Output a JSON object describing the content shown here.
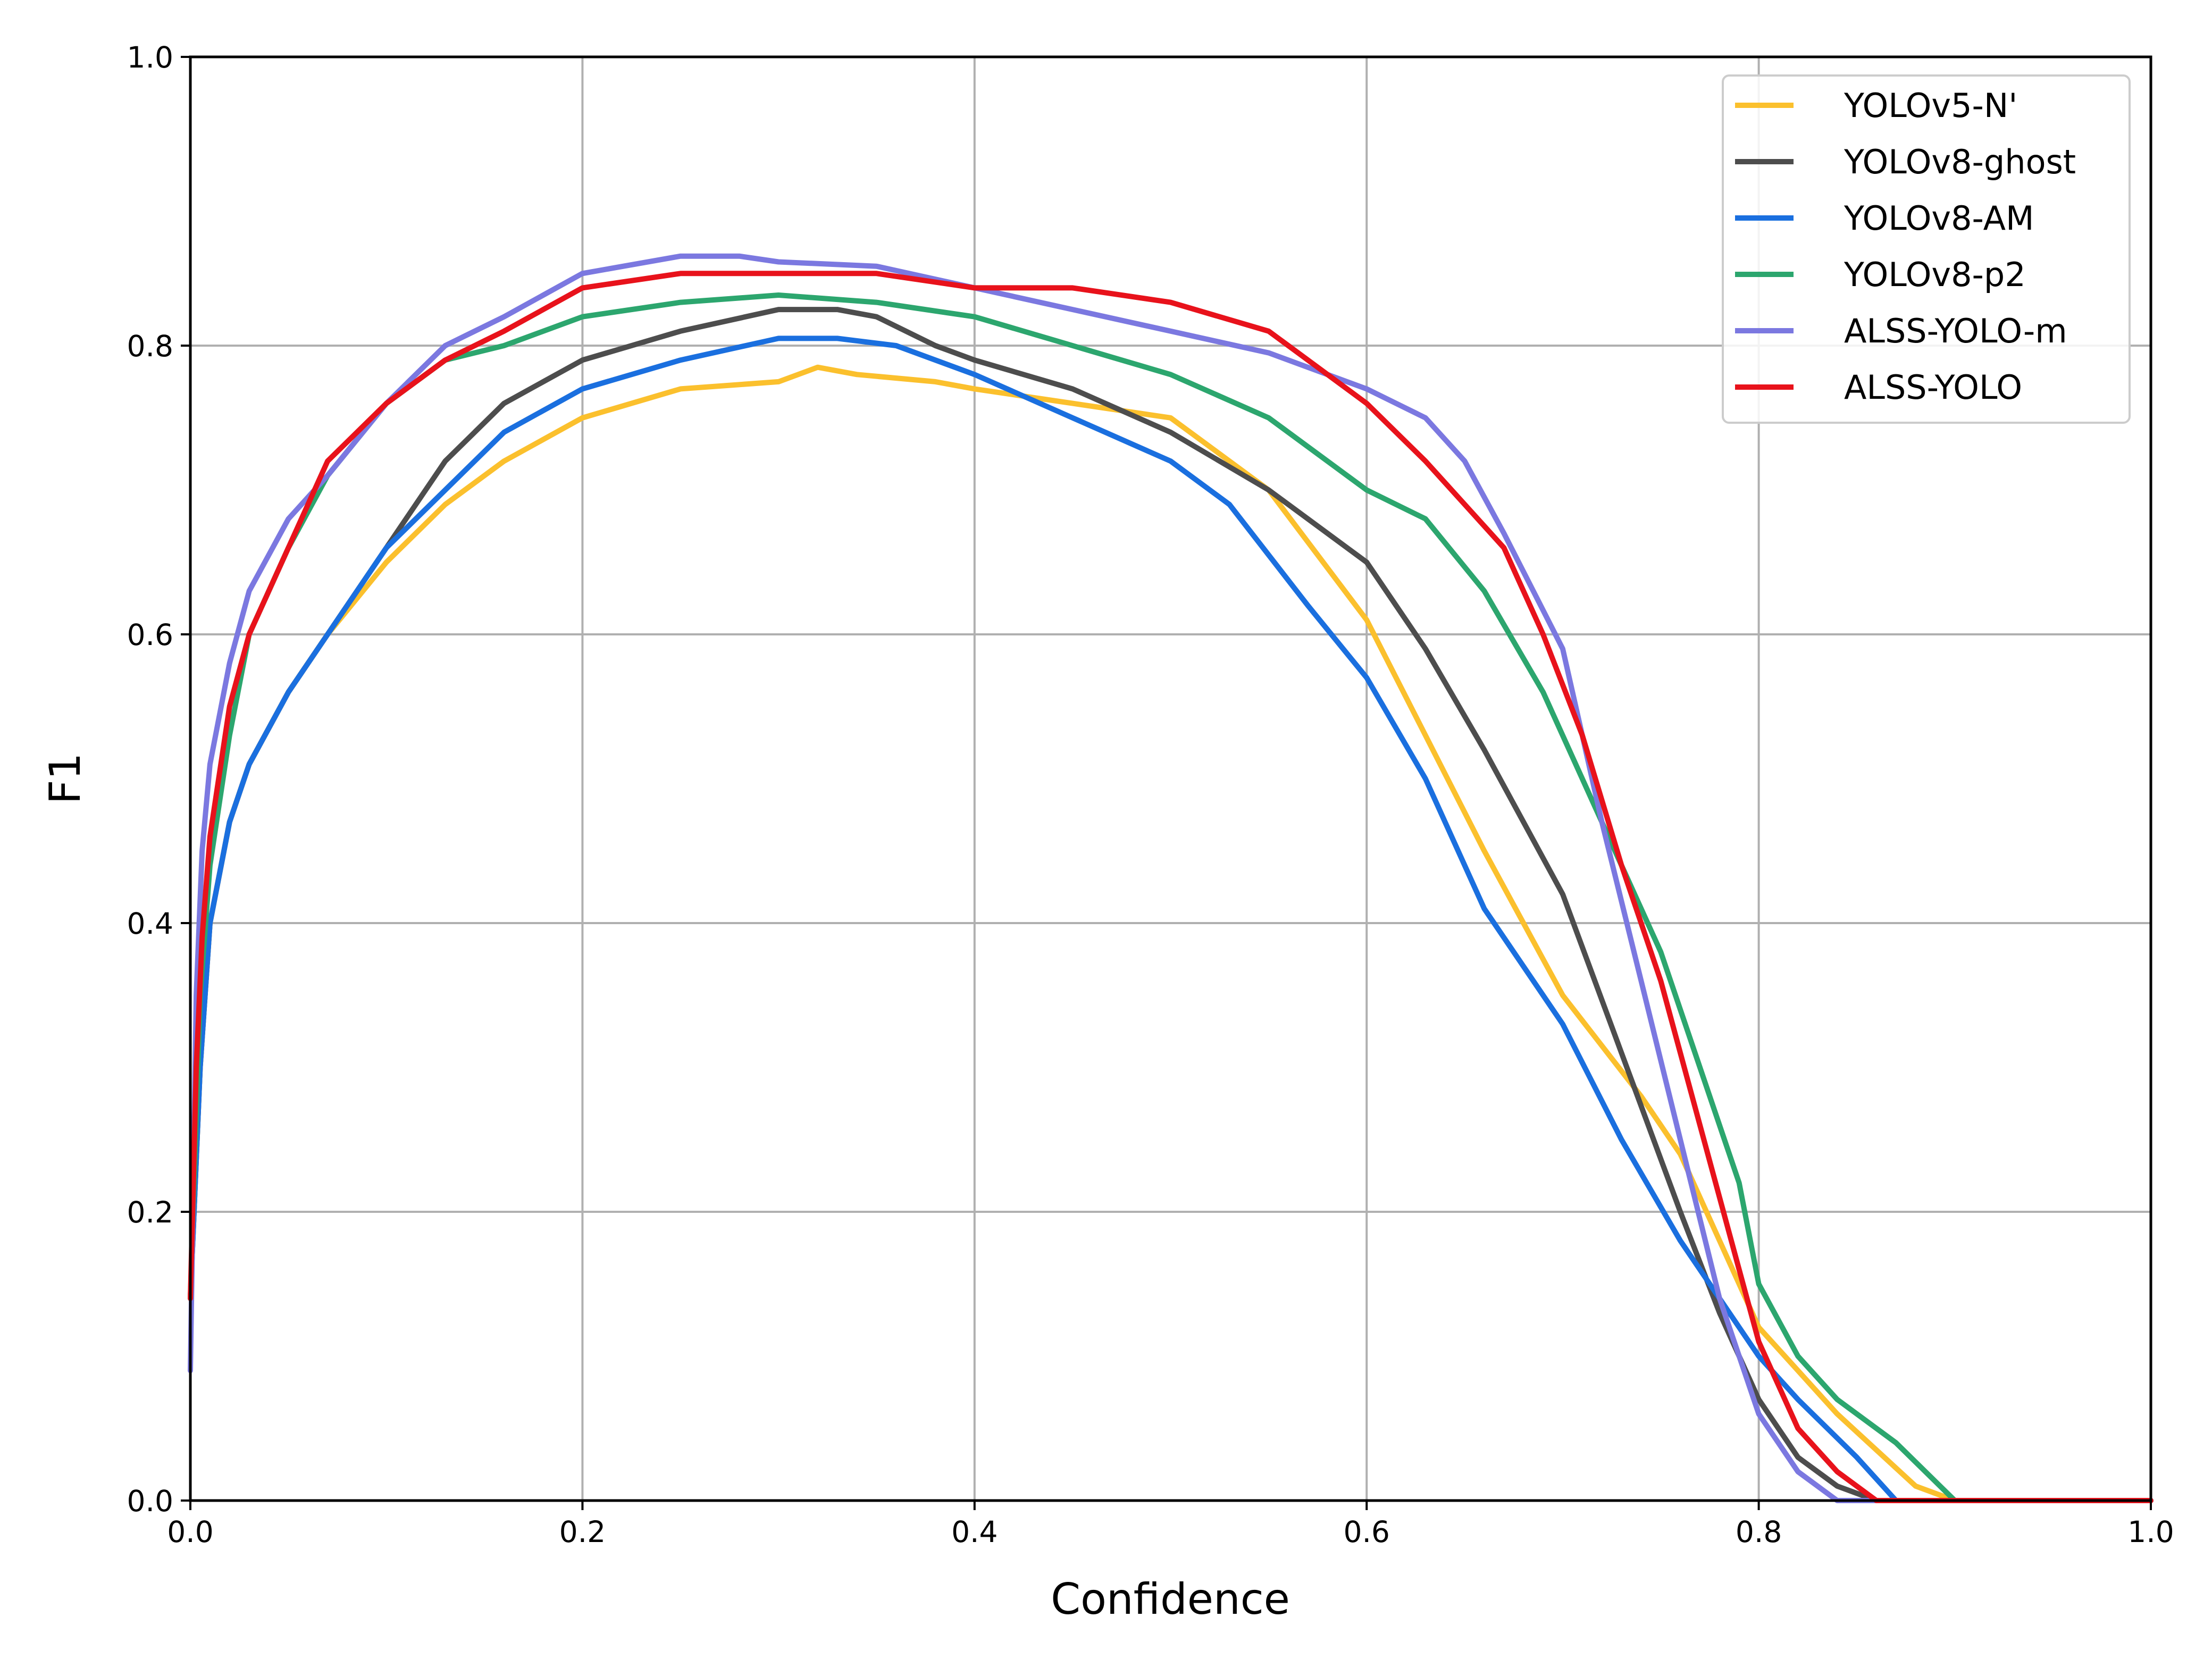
{
  "chart_data": {
    "type": "line",
    "title": "",
    "xlabel": "Confidence",
    "ylabel": "F1",
    "xlim": [
      0.0,
      1.0
    ],
    "ylim": [
      0.0,
      1.0
    ],
    "x_ticks": [
      "0.0",
      "0.2",
      "0.4",
      "0.6",
      "0.8",
      "1.0"
    ],
    "y_ticks": [
      "0.0",
      "0.2",
      "0.4",
      "0.6",
      "0.8",
      "1.0"
    ],
    "grid": true,
    "legend_position": "top-right",
    "series": [
      {
        "name": "YOLOv5-N'",
        "color": "#FBC02D",
        "x": [
          0.0,
          0.005,
          0.01,
          0.02,
          0.03,
          0.05,
          0.07,
          0.1,
          0.13,
          0.16,
          0.2,
          0.25,
          0.3,
          0.32,
          0.34,
          0.38,
          0.4,
          0.45,
          0.5,
          0.55,
          0.6,
          0.63,
          0.66,
          0.7,
          0.74,
          0.76,
          0.78,
          0.8,
          0.84,
          0.88,
          0.9,
          1.0
        ],
        "y": [
          0.14,
          0.3,
          0.4,
          0.47,
          0.51,
          0.56,
          0.6,
          0.65,
          0.69,
          0.72,
          0.75,
          0.77,
          0.775,
          0.785,
          0.78,
          0.775,
          0.77,
          0.76,
          0.75,
          0.7,
          0.61,
          0.53,
          0.45,
          0.35,
          0.28,
          0.24,
          0.18,
          0.12,
          0.06,
          0.01,
          0.0,
          0.0
        ]
      },
      {
        "name": "YOLOv8-ghost",
        "color": "#4D4D4D",
        "x": [
          0.0,
          0.005,
          0.01,
          0.02,
          0.03,
          0.05,
          0.07,
          0.1,
          0.13,
          0.16,
          0.2,
          0.25,
          0.3,
          0.33,
          0.35,
          0.38,
          0.4,
          0.45,
          0.5,
          0.55,
          0.6,
          0.63,
          0.66,
          0.7,
          0.73,
          0.76,
          0.78,
          0.8,
          0.82,
          0.84,
          0.86,
          1.0
        ],
        "y": [
          0.14,
          0.3,
          0.4,
          0.47,
          0.51,
          0.56,
          0.6,
          0.66,
          0.72,
          0.76,
          0.79,
          0.81,
          0.825,
          0.825,
          0.82,
          0.8,
          0.79,
          0.77,
          0.74,
          0.7,
          0.65,
          0.59,
          0.52,
          0.42,
          0.31,
          0.2,
          0.13,
          0.07,
          0.03,
          0.01,
          0.0,
          0.0
        ]
      },
      {
        "name": "YOLOv8-AM",
        "color": "#1A6FDF",
        "x": [
          0.0,
          0.005,
          0.01,
          0.02,
          0.03,
          0.05,
          0.07,
          0.1,
          0.13,
          0.16,
          0.2,
          0.25,
          0.3,
          0.33,
          0.36,
          0.4,
          0.45,
          0.5,
          0.53,
          0.57,
          0.6,
          0.63,
          0.66,
          0.7,
          0.73,
          0.76,
          0.78,
          0.8,
          0.82,
          0.85,
          0.87,
          1.0
        ],
        "y": [
          0.14,
          0.3,
          0.4,
          0.47,
          0.51,
          0.56,
          0.6,
          0.66,
          0.7,
          0.74,
          0.77,
          0.79,
          0.805,
          0.805,
          0.8,
          0.78,
          0.75,
          0.72,
          0.69,
          0.62,
          0.57,
          0.5,
          0.41,
          0.33,
          0.25,
          0.18,
          0.14,
          0.1,
          0.07,
          0.03,
          0.0,
          0.0
        ]
      },
      {
        "name": "YOLOv8-p2",
        "color": "#2CA66E",
        "x": [
          0.0,
          0.005,
          0.01,
          0.02,
          0.03,
          0.05,
          0.07,
          0.1,
          0.13,
          0.16,
          0.2,
          0.25,
          0.3,
          0.35,
          0.4,
          0.45,
          0.5,
          0.55,
          0.6,
          0.63,
          0.66,
          0.69,
          0.72,
          0.75,
          0.77,
          0.79,
          0.8,
          0.82,
          0.84,
          0.87,
          0.9,
          1.0
        ],
        "y": [
          0.14,
          0.35,
          0.44,
          0.53,
          0.6,
          0.66,
          0.71,
          0.76,
          0.79,
          0.8,
          0.82,
          0.83,
          0.835,
          0.83,
          0.82,
          0.8,
          0.78,
          0.75,
          0.7,
          0.68,
          0.63,
          0.56,
          0.47,
          0.38,
          0.3,
          0.22,
          0.15,
          0.1,
          0.07,
          0.04,
          0.0,
          0.0
        ]
      },
      {
        "name": "ALSS-YOLO-m",
        "color": "#7B78E0",
        "x": [
          0.0,
          0.003,
          0.006,
          0.01,
          0.02,
          0.03,
          0.05,
          0.07,
          0.1,
          0.13,
          0.16,
          0.2,
          0.25,
          0.28,
          0.3,
          0.35,
          0.4,
          0.45,
          0.5,
          0.55,
          0.58,
          0.6,
          0.63,
          0.65,
          0.67,
          0.7,
          0.72,
          0.74,
          0.76,
          0.78,
          0.8,
          0.82,
          0.84,
          1.0
        ],
        "y": [
          0.09,
          0.35,
          0.45,
          0.51,
          0.58,
          0.63,
          0.68,
          0.71,
          0.76,
          0.8,
          0.82,
          0.85,
          0.862,
          0.862,
          0.858,
          0.855,
          0.84,
          0.825,
          0.81,
          0.795,
          0.78,
          0.77,
          0.75,
          0.72,
          0.67,
          0.59,
          0.47,
          0.36,
          0.25,
          0.14,
          0.06,
          0.02,
          0.0,
          0.0
        ]
      },
      {
        "name": "ALSS-YOLO",
        "color": "#E8121B",
        "x": [
          0.0,
          0.003,
          0.006,
          0.01,
          0.02,
          0.03,
          0.05,
          0.07,
          0.1,
          0.13,
          0.16,
          0.2,
          0.25,
          0.3,
          0.35,
          0.4,
          0.45,
          0.5,
          0.55,
          0.6,
          0.63,
          0.65,
          0.67,
          0.69,
          0.71,
          0.73,
          0.75,
          0.77,
          0.79,
          0.8,
          0.82,
          0.84,
          0.86,
          1.0
        ],
        "y": [
          0.14,
          0.3,
          0.39,
          0.46,
          0.55,
          0.6,
          0.66,
          0.72,
          0.76,
          0.79,
          0.81,
          0.84,
          0.85,
          0.85,
          0.85,
          0.84,
          0.84,
          0.83,
          0.81,
          0.76,
          0.72,
          0.69,
          0.66,
          0.6,
          0.53,
          0.44,
          0.36,
          0.26,
          0.16,
          0.11,
          0.05,
          0.02,
          0.0,
          0.0
        ]
      }
    ]
  }
}
